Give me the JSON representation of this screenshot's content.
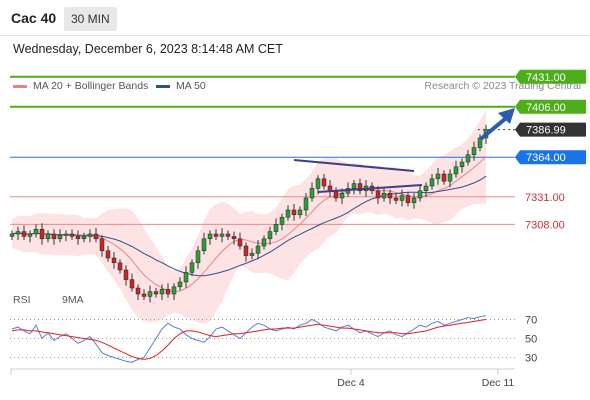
{
  "header": {
    "symbol": "Cac 40",
    "timeframe": "30 MIN",
    "datetime": "Wednesday, December 6, 2023 8:14:48 AM CET"
  },
  "legend": {
    "ma20_label": "MA 20 + Bollinger Bands",
    "ma20_color": "#f08080",
    "ma50_label": "MA 50",
    "ma50_color": "#2f4f8f",
    "credit": "Research © 2023 Trading Central"
  },
  "rsi_legend": {
    "rsi_label": "RSI",
    "rsi_color": "#5b7fd6",
    "ma9_label": "9MA",
    "ma9_color": "#e02020"
  },
  "chart_data": [
    {
      "type": "candlestick",
      "title": "Cac 40",
      "ylim": [
        7240,
        7445
      ],
      "xticks": [
        "Dec 4",
        "Dec 11"
      ],
      "price_levels": [
        {
          "value": 7431.0,
          "label": "7431.00",
          "color": "#4caf1a",
          "style": "green-tag"
        },
        {
          "value": 7406.0,
          "label": "7406.00",
          "color": "#4caf1a",
          "style": "green-tag"
        },
        {
          "value": 7386.99,
          "label": "7386.99",
          "color": "#333333",
          "style": "last-price"
        },
        {
          "value": 7364.0,
          "label": "7364.00",
          "color": "#1a73e8",
          "style": "blue-tag"
        },
        {
          "value": 7331.0,
          "label": "7331.00",
          "color": "#d32f2f",
          "style": "red-text"
        },
        {
          "value": 7308.0,
          "label": "7308.00",
          "color": "#d32f2f",
          "style": "red-text"
        }
      ],
      "close_path": [
        7300,
        7302,
        7298,
        7300,
        7304,
        7296,
        7300,
        7296,
        7299,
        7300,
        7298,
        7296,
        7298,
        7300,
        7296,
        7286,
        7280,
        7276,
        7270,
        7262,
        7255,
        7250,
        7248,
        7252,
        7250,
        7254,
        7250,
        7256,
        7260,
        7268,
        7276,
        7286,
        7296,
        7300,
        7298,
        7300,
        7298,
        7296,
        7290,
        7282,
        7284,
        7290,
        7296,
        7302,
        7308,
        7314,
        7320,
        7316,
        7320,
        7330,
        7338,
        7346,
        7340,
        7336,
        7330,
        7334,
        7338,
        7342,
        7336,
        7340,
        7336,
        7330,
        7334,
        7330,
        7328,
        7332,
        7326,
        7330,
        7336,
        7340,
        7346,
        7350,
        7344,
        7350,
        7356,
        7360,
        7366,
        7372,
        7380,
        7387
      ]
    },
    {
      "type": "line",
      "title": "RSI",
      "ylim": [
        20,
        80
      ],
      "yticks": [
        70,
        50,
        30
      ],
      "series": [
        {
          "name": "RSI",
          "values": [
            60,
            62,
            58,
            55,
            64,
            50,
            56,
            48,
            52,
            55,
            50,
            45,
            48,
            52,
            44,
            35,
            32,
            30,
            28,
            26,
            25,
            28,
            30,
            40,
            50,
            60,
            66,
            62,
            60,
            54,
            50,
            48,
            46,
            52,
            60,
            62,
            58,
            54,
            50,
            56,
            62,
            66,
            64,
            60,
            58,
            60,
            62,
            60,
            64,
            66,
            70,
            67,
            62,
            60,
            58,
            62,
            64,
            60,
            56,
            58,
            55,
            52,
            56,
            58,
            54,
            52,
            56,
            60,
            64,
            62,
            66,
            68,
            64,
            66,
            68,
            70,
            72,
            71,
            73,
            74
          ]
        },
        {
          "name": "9MA",
          "values": [
            58,
            59,
            59,
            58,
            58,
            57,
            56,
            55,
            54,
            53,
            52,
            51,
            50,
            49,
            48,
            46,
            43,
            40,
            37,
            34,
            31,
            29,
            28,
            29,
            32,
            37,
            43,
            50,
            55,
            58,
            58,
            57,
            55,
            53,
            52,
            53,
            54,
            55,
            55,
            56,
            57,
            58,
            59,
            60,
            60,
            61,
            61,
            61,
            62,
            63,
            64,
            65,
            64,
            63,
            62,
            61,
            61,
            60,
            59,
            58,
            57,
            56,
            56,
            56,
            56,
            55,
            55,
            56,
            57,
            58,
            60,
            62,
            63,
            64,
            65,
            66,
            67,
            68,
            69,
            70
          ]
        }
      ]
    }
  ]
}
